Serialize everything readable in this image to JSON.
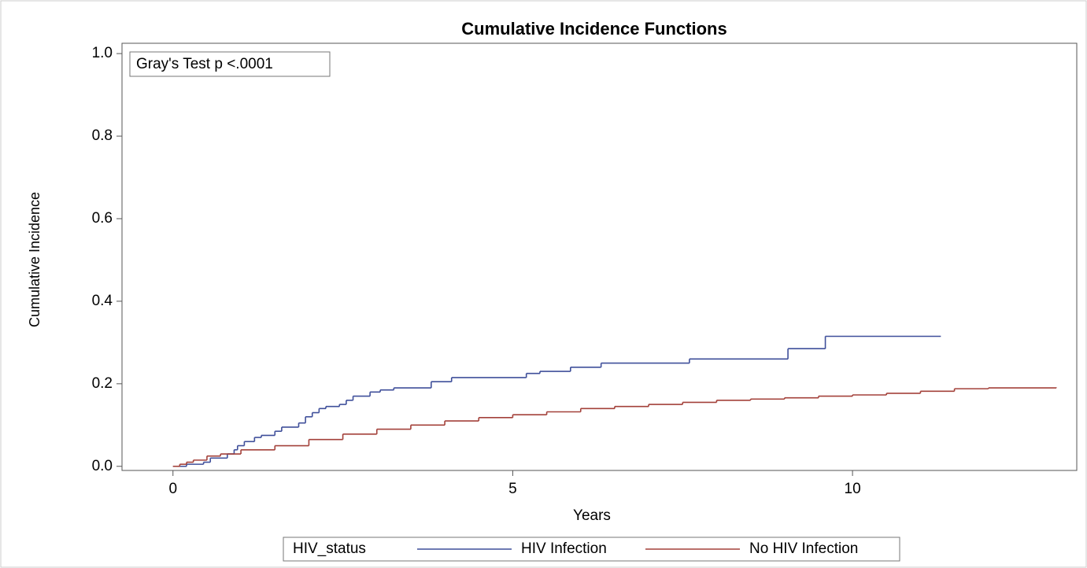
{
  "chart_data": {
    "type": "step",
    "title": "Cumulative Incidence Functions",
    "annotation": "Gray's Test p <.0001",
    "xlabel": "Years",
    "ylabel": "Cumulative Incidence",
    "legend_title": "HIV_status",
    "xlim": [
      -0.75,
      13.3
    ],
    "ylim": [
      -0.01,
      1.025
    ],
    "xticks": [
      0,
      5,
      10
    ],
    "yticks": [
      {
        "value": 0,
        "label": "0.0"
      },
      0.2,
      0.4,
      0.6,
      0.8,
      {
        "value": 1,
        "label": "1.0"
      }
    ],
    "series": [
      {
        "name": "HIV Infection",
        "color": "#3f4f9a",
        "x": [
          0,
          0.2,
          0.45,
          0.55,
          0.8,
          0.9,
          0.95,
          1.05,
          1.2,
          1.3,
          1.5,
          1.6,
          1.85,
          1.95,
          2.05,
          2.15,
          2.25,
          2.45,
          2.55,
          2.65,
          2.9,
          3.05,
          3.25,
          3.8,
          4.1,
          5.2,
          5.4,
          5.85,
          6.3,
          7.6,
          9.05,
          9.6,
          11.3
        ],
        "values": [
          0,
          0.005,
          0.01,
          0.02,
          0.03,
          0.04,
          0.05,
          0.06,
          0.07,
          0.075,
          0.085,
          0.095,
          0.105,
          0.12,
          0.13,
          0.14,
          0.145,
          0.15,
          0.16,
          0.17,
          0.18,
          0.185,
          0.19,
          0.205,
          0.215,
          0.225,
          0.23,
          0.24,
          0.25,
          0.26,
          0.285,
          0.315,
          0.315
        ]
      },
      {
        "name": "No HIV Infection",
        "color": "#a3413a",
        "x": [
          0,
          0.1,
          0.2,
          0.3,
          0.5,
          0.7,
          1,
          1.5,
          2,
          2.5,
          3,
          3.5,
          4,
          4.5,
          5,
          5.5,
          6,
          6.5,
          7,
          7.5,
          8,
          8.5,
          9,
          9.5,
          10,
          10.5,
          11,
          11.5,
          12,
          13
        ],
        "values": [
          0,
          0.005,
          0.01,
          0.015,
          0.025,
          0.03,
          0.04,
          0.05,
          0.065,
          0.078,
          0.09,
          0.1,
          0.11,
          0.118,
          0.125,
          0.132,
          0.14,
          0.145,
          0.15,
          0.155,
          0.16,
          0.163,
          0.166,
          0.17,
          0.173,
          0.177,
          0.182,
          0.188,
          0.19,
          0.191
        ]
      }
    ]
  }
}
